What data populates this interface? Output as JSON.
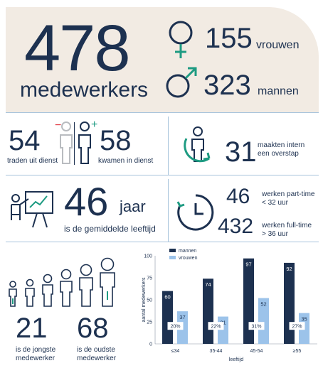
{
  "header": {
    "total": "478",
    "total_label": "medewerkers",
    "women_count": "155",
    "women_label": "vrouwen",
    "men_count": "323",
    "men_label": "mannen"
  },
  "flow": {
    "left_count": "54",
    "left_label": "traden uit dienst",
    "left_sign": "−",
    "joined_count": "58",
    "joined_label": "kwamen in dienst",
    "joined_sign": "+"
  },
  "internal": {
    "count": "31",
    "label_line1": "maakten intern",
    "label_line2": "een overstap"
  },
  "age_avg": {
    "count": "46",
    "unit": "jaar",
    "label": "is de gemiddelde leeftijd"
  },
  "hours": {
    "part_count": "46",
    "part_label1": "werken part-time",
    "part_label2": "< 32 uur",
    "full_count": "432",
    "full_label1": "werken full-time",
    "full_label2": "> 36 uur"
  },
  "ages": {
    "youngest": "21",
    "youngest_label1": "is de jongste",
    "youngest_label2": "medewerker",
    "oldest": "68",
    "oldest_label1": "is de oudste",
    "oldest_label2": "medewerker"
  },
  "colors": {
    "navy": "#1d3150",
    "light_blue": "#9cc3ea",
    "teal": "#1e9b82",
    "red": "#e0303a",
    "beige": "#f2ebe3"
  },
  "chart_data": {
    "type": "bar",
    "categories": [
      "≤34",
      "35-44",
      "45-54",
      "≥55"
    ],
    "series": [
      {
        "name": "mannen",
        "values": [
          60,
          74,
          97,
          92
        ],
        "color": "#1d3150"
      },
      {
        "name": "vrouwen",
        "values": [
          37,
          31,
          52,
          35
        ],
        "color": "#9cc3ea"
      }
    ],
    "pct_labels": [
      "20%",
      "22%",
      "31%",
      "27%"
    ],
    "xlabel": "leeftijd",
    "ylabel": "aantal medewerkers",
    "ylim": [
      0,
      100
    ],
    "yticks": [
      "0",
      "25",
      "50",
      "75",
      "100"
    ],
    "legend": "top-left"
  }
}
